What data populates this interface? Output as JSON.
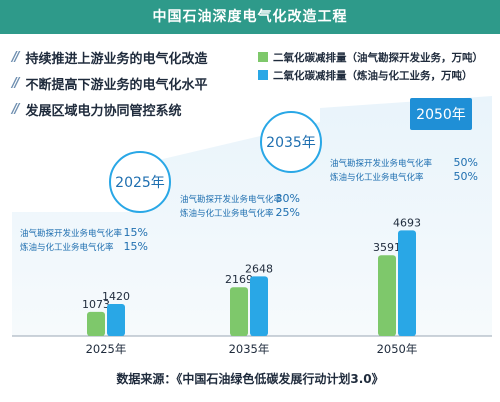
{
  "title": "中国石油深度电气化改造工程",
  "bullets": [
    {
      "mark": "//",
      "text": "持续推进上游业务的电气化改造"
    },
    {
      "mark": "//",
      "text": "不断提高下游业务的电气化水平"
    },
    {
      "mark": "//",
      "text": "发展区域电力协同管控系统"
    }
  ],
  "source": "数据来源：《中国石油绿色低碳发展行动计划3.0》",
  "colors": {
    "green": "#7ec86b",
    "blue": "#29a7e6",
    "teal": "#2e9a8a"
  },
  "chart_data": {
    "type": "bar",
    "title": "中国石油深度电气化改造工程",
    "categories": [
      "2025年",
      "2035年",
      "2050年"
    ],
    "badges": [
      "2025年",
      "2035年",
      "2050年"
    ],
    "series": [
      {
        "name": "二氧化碳减排量（油气勘探开发业务，万吨）",
        "color": "#7ec86b",
        "values": [
          1073,
          2169,
          3591
        ]
      },
      {
        "name": "二氧化碳减排量（炼油与化工业务，万吨）",
        "color": "#29a7e6",
        "values": [
          1420,
          2648,
          4693
        ]
      }
    ],
    "rates": [
      {
        "upstream_label": "油气勘探开发业务电气化率",
        "upstream": "15%",
        "downstream_label": "炼油与化工业务电气化率",
        "downstream": "15%"
      },
      {
        "upstream_label": "油气勘探开发业务电气化率",
        "upstream": "30%",
        "downstream_label": "炼油与化工业务电气化率",
        "downstream": "25%"
      },
      {
        "upstream_label": "油气勘探开发业务电气化率",
        "upstream": "50%",
        "downstream_label": "炼油与化工业务电气化率",
        "downstream": "50%"
      }
    ],
    "ylim": [
      0,
      5000
    ],
    "grid": false,
    "legend": "top-right"
  }
}
